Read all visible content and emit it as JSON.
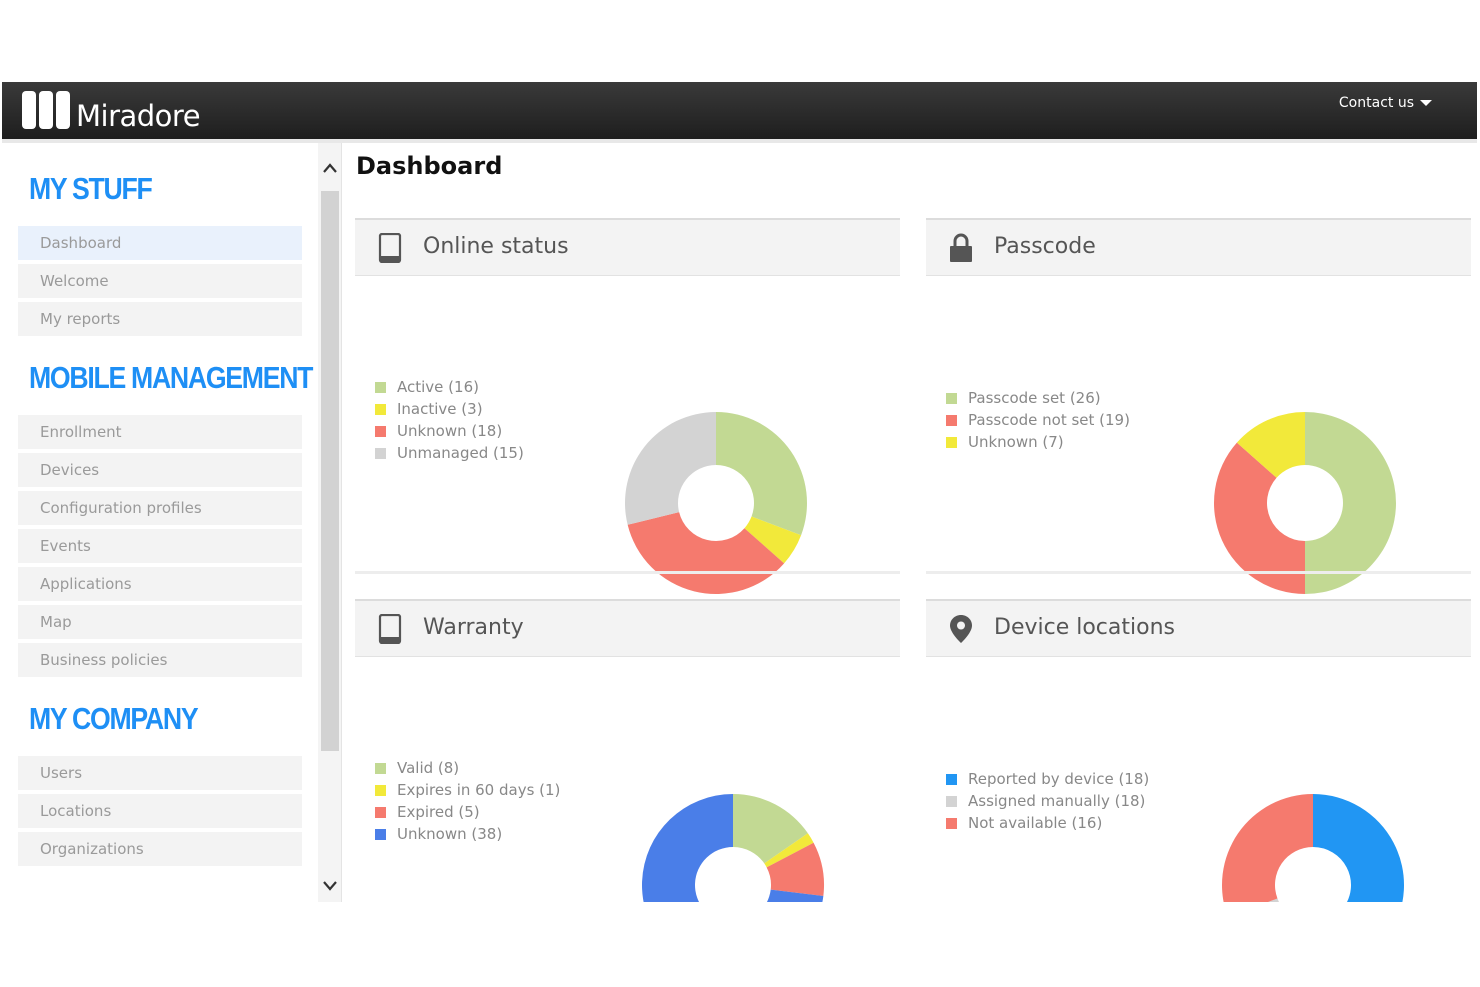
{
  "app": {
    "name": "Miradore"
  },
  "header": {
    "contact_label": "Contact us"
  },
  "sidebar": {
    "sections": [
      {
        "title": "MY STUFF",
        "items": [
          "Dashboard",
          "Welcome",
          "My reports"
        ]
      },
      {
        "title": "MOBILE MANAGEMENT",
        "items": [
          "Enrollment",
          "Devices",
          "Configuration profiles",
          "Events",
          "Applications",
          "Map",
          "Business policies"
        ]
      },
      {
        "title": "MY COMPANY",
        "items": [
          "Users",
          "Locations",
          "Organizations"
        ]
      }
    ],
    "active_item": "Dashboard"
  },
  "main": {
    "title": "Dashboard"
  },
  "panels": [
    {
      "title": "Online status",
      "icon": "mobile-device-icon",
      "legend": [
        {
          "label": "Active (16)",
          "color": "#c2d993"
        },
        {
          "label": "Inactive (3)",
          "color": "#f2e93a"
        },
        {
          "label": "Unknown (18)",
          "color": "#f57a6e"
        },
        {
          "label": "Unmanaged (15)",
          "color": "#d3d3d3"
        }
      ],
      "chart_data": {
        "type": "pie",
        "categories": [
          "Active",
          "Inactive",
          "Unknown",
          "Unmanaged"
        ],
        "values": [
          16,
          3,
          18,
          15
        ],
        "colors": [
          "#c2d993",
          "#f2e93a",
          "#f57a6e",
          "#d3d3d3"
        ],
        "donut": true
      }
    },
    {
      "title": "Passcode",
      "icon": "lock-icon",
      "legend": [
        {
          "label": "Passcode set (26)",
          "color": "#c2d993"
        },
        {
          "label": "Passcode not set (19)",
          "color": "#f57a6e"
        },
        {
          "label": "Unknown (7)",
          "color": "#f2e93a"
        }
      ],
      "chart_data": {
        "type": "pie",
        "categories": [
          "Passcode set",
          "Passcode not set",
          "Unknown"
        ],
        "values": [
          26,
          19,
          7
        ],
        "colors": [
          "#c2d993",
          "#f57a6e",
          "#f2e93a"
        ],
        "donut": true
      }
    },
    {
      "title": "Warranty",
      "icon": "mobile-device-icon",
      "legend": [
        {
          "label": "Valid (8)",
          "color": "#c2d993"
        },
        {
          "label": "Expires in 60 days (1)",
          "color": "#f2e93a"
        },
        {
          "label": "Expired (5)",
          "color": "#f57a6e"
        },
        {
          "label": "Unknown (38)",
          "color": "#4a7ee8"
        }
      ],
      "chart_data": {
        "type": "pie",
        "categories": [
          "Valid",
          "Expires in 60 days",
          "Expired",
          "Unknown"
        ],
        "values": [
          8,
          1,
          5,
          38
        ],
        "colors": [
          "#c2d993",
          "#f2e93a",
          "#f57a6e",
          "#4a7ee8"
        ],
        "donut": true
      }
    },
    {
      "title": "Device locations",
      "icon": "map-pin-icon",
      "legend": [
        {
          "label": "Reported by device (18)",
          "color": "#2196f3"
        },
        {
          "label": "Assigned manually (18)",
          "color": "#d3d3d3"
        },
        {
          "label": "Not available (16)",
          "color": "#f57a6e"
        }
      ],
      "chart_data": {
        "type": "pie",
        "categories": [
          "Reported by device",
          "Assigned manually",
          "Not available"
        ],
        "values": [
          18,
          18,
          16
        ],
        "colors": [
          "#2196f3",
          "#d3d3d3",
          "#f57a6e"
        ],
        "donut": true
      }
    }
  ]
}
